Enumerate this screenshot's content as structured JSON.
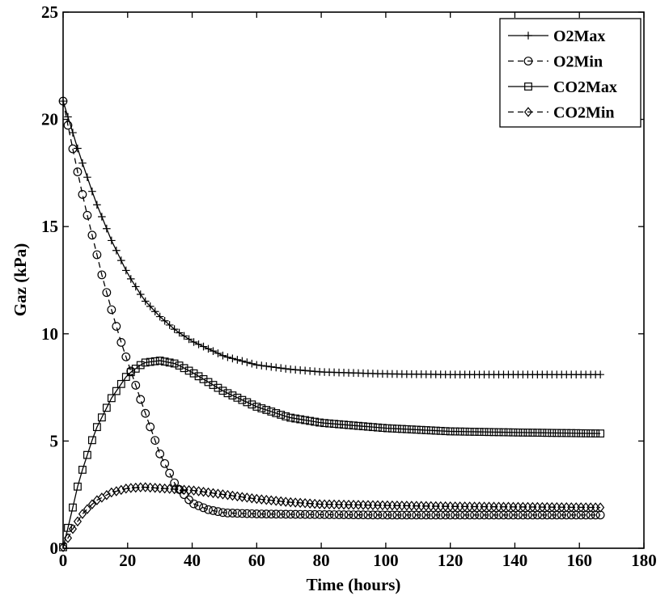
{
  "chart_data": {
    "type": "line",
    "title": "",
    "xlabel": "Time (hours)",
    "ylabel": "Gaz (kPa)",
    "xlim": [
      0,
      180
    ],
    "ylim": [
      0,
      25
    ],
    "xticks": [
      0,
      20,
      40,
      60,
      80,
      100,
      120,
      140,
      160,
      180
    ],
    "yticks": [
      0,
      5,
      10,
      15,
      20,
      25
    ],
    "grid": false,
    "legend_position": "top-right",
    "x_step": 1.5,
    "x_max": 167,
    "series": [
      {
        "name": "O2Max",
        "marker": "plus",
        "line_style": "solid",
        "color": "#000000",
        "points": [
          [
            0,
            20.85
          ],
          [
            5,
            18.4
          ],
          [
            10,
            16.2
          ],
          [
            15,
            14.35
          ],
          [
            20,
            12.8
          ],
          [
            25,
            11.6
          ],
          [
            30,
            10.8
          ],
          [
            35,
            10.15
          ],
          [
            40,
            9.65
          ],
          [
            50,
            8.95
          ],
          [
            60,
            8.55
          ],
          [
            70,
            8.35
          ],
          [
            80,
            8.22
          ],
          [
            100,
            8.13
          ],
          [
            120,
            8.1
          ],
          [
            140,
            8.1
          ],
          [
            167,
            8.1
          ]
        ]
      },
      {
        "name": "O2Min",
        "marker": "circle",
        "line_style": "dashed",
        "color": "#000000",
        "points": [
          [
            0,
            20.85
          ],
          [
            2,
            19.35
          ],
          [
            4,
            17.9
          ],
          [
            6,
            16.5
          ],
          [
            8,
            15.2
          ],
          [
            10,
            14.0
          ],
          [
            12,
            12.75
          ],
          [
            14,
            11.65
          ],
          [
            16,
            10.6
          ],
          [
            18,
            9.6
          ],
          [
            20,
            8.7
          ],
          [
            25,
            6.5
          ],
          [
            30,
            4.4
          ],
          [
            35,
            2.9
          ],
          [
            40,
            2.1
          ],
          [
            45,
            1.8
          ],
          [
            50,
            1.65
          ],
          [
            60,
            1.6
          ],
          [
            80,
            1.57
          ],
          [
            100,
            1.55
          ],
          [
            167,
            1.55
          ]
        ]
      },
      {
        "name": "CO2Max",
        "marker": "square",
        "line_style": "solid",
        "color": "#000000",
        "points": [
          [
            0,
            0.05
          ],
          [
            2,
            1.25
          ],
          [
            5,
            3.2
          ],
          [
            10,
            5.5
          ],
          [
            15,
            7.0
          ],
          [
            20,
            8.1
          ],
          [
            25,
            8.65
          ],
          [
            30,
            8.75
          ],
          [
            35,
            8.6
          ],
          [
            40,
            8.2
          ],
          [
            50,
            7.3
          ],
          [
            60,
            6.6
          ],
          [
            70,
            6.1
          ],
          [
            80,
            5.85
          ],
          [
            100,
            5.6
          ],
          [
            120,
            5.45
          ],
          [
            140,
            5.4
          ],
          [
            167,
            5.35
          ]
        ]
      },
      {
        "name": "CO2Min",
        "marker": "diamond",
        "line_style": "dashed",
        "color": "#000000",
        "points": [
          [
            0,
            0.05
          ],
          [
            3,
            0.9
          ],
          [
            6,
            1.6
          ],
          [
            10,
            2.2
          ],
          [
            15,
            2.6
          ],
          [
            20,
            2.8
          ],
          [
            25,
            2.85
          ],
          [
            30,
            2.8
          ],
          [
            40,
            2.7
          ],
          [
            50,
            2.5
          ],
          [
            60,
            2.3
          ],
          [
            70,
            2.15
          ],
          [
            80,
            2.05
          ],
          [
            100,
            2.0
          ],
          [
            120,
            1.95
          ],
          [
            167,
            1.9
          ]
        ]
      }
    ]
  }
}
